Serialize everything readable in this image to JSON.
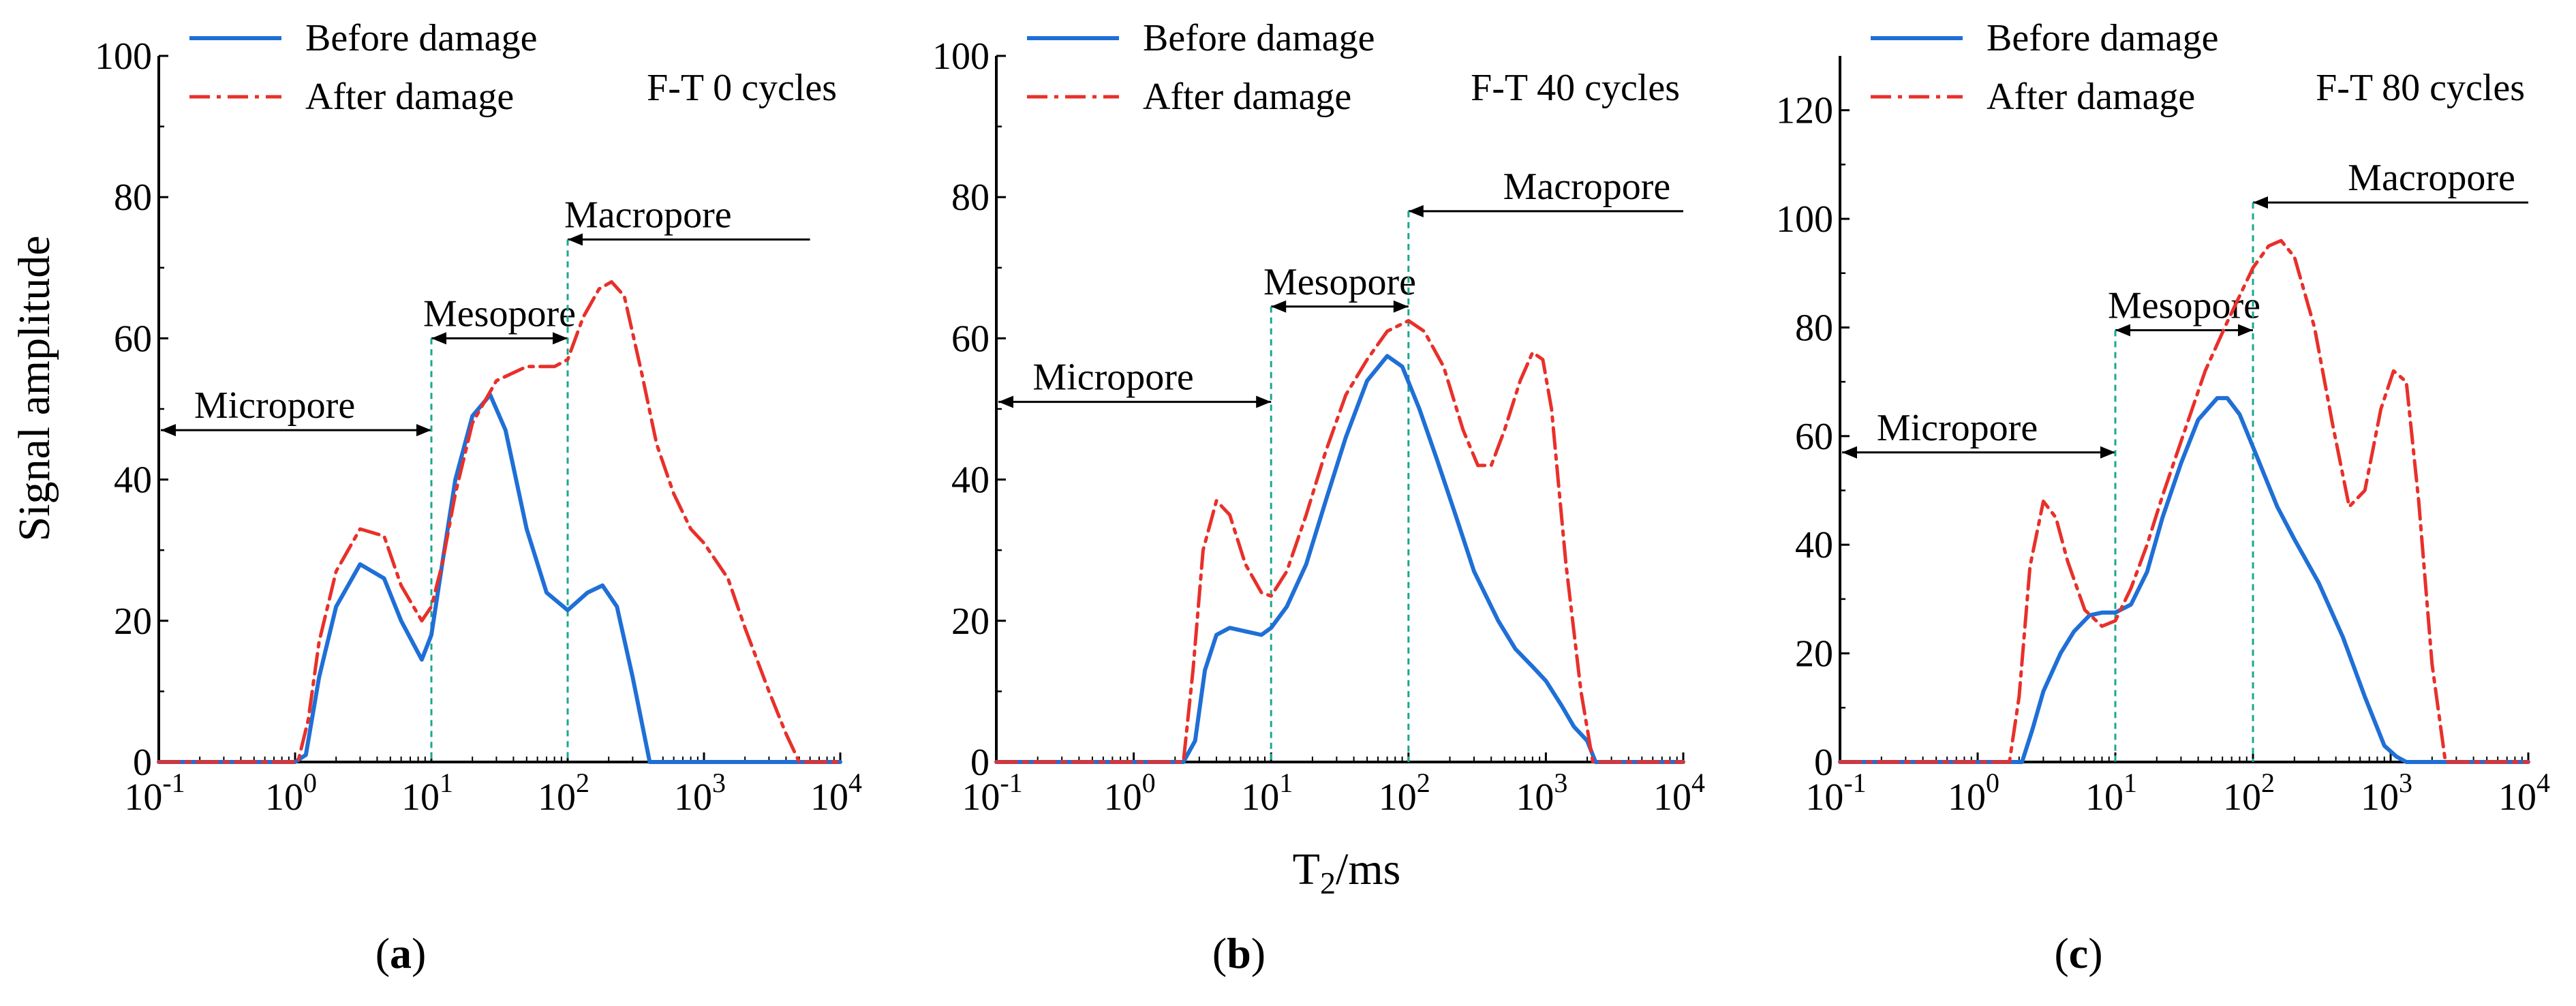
{
  "figure": {
    "ylabel": "Signal amplitude",
    "xlabel_main": "T",
    "xlabel_sub": "2",
    "xlabel_unit": "/ms",
    "legend": {
      "before": "Before damage",
      "after": "After damage"
    },
    "colors": {
      "before": "#1f6fd6",
      "after": "#e8302a",
      "boundary": "#1aa88c",
      "axis": "#000000"
    }
  },
  "chart_data": [
    {
      "type": "line",
      "panel_label": "a",
      "condition": "F-T 0 cycles",
      "xscale": "log",
      "xlim": [
        0.1,
        10000
      ],
      "xtick_exponents": [
        "-1",
        "0",
        "1",
        "2",
        "3",
        "4"
      ],
      "ylim": [
        0,
        100
      ],
      "yticks": [
        0,
        20,
        40,
        60,
        80,
        100
      ],
      "xlabel": "",
      "ylabel": "Signal amplitude",
      "boundaries": [
        10,
        100
      ],
      "pore_regions": [
        {
          "label": "Micropore",
          "x_from": 0.1,
          "x_to": 10,
          "y": 47
        },
        {
          "label": "Mesopore",
          "x_from": 10,
          "x_to": 100,
          "y": 60
        },
        {
          "label": "Macropore",
          "x_from": 100,
          "x_to": 6000,
          "y": 74
        }
      ],
      "series": [
        {
          "name": "Before damage",
          "x": [
            0.1,
            1.0,
            1.2,
            1.5,
            2,
            3,
            4.5,
            6,
            8.5,
            10,
            12,
            15,
            20,
            27,
            35,
            50,
            70,
            100,
            140,
            180,
            230,
            300,
            400,
            10000
          ],
          "y": [
            0,
            0,
            1,
            12,
            22,
            28,
            26,
            20,
            14.5,
            18,
            28,
            40,
            49,
            52,
            47,
            33,
            24,
            21.5,
            24,
            25,
            22,
            12,
            0,
            0
          ]
        },
        {
          "name": "After damage",
          "x": [
            0.1,
            1.05,
            1.25,
            1.5,
            2,
            3,
            4.5,
            6,
            8.5,
            10,
            12,
            15,
            20,
            30,
            50,
            80,
            100,
            130,
            170,
            210,
            260,
            350,
            450,
            600,
            800,
            1000,
            1500,
            2000,
            3000,
            4000,
            5000,
            10000
          ],
          "y": [
            0,
            0,
            6,
            17,
            27,
            33,
            32,
            25,
            20,
            22,
            28,
            38,
            48,
            54,
            56,
            56,
            57,
            63,
            67,
            68,
            66,
            55,
            45,
            38,
            33,
            31,
            26,
            19,
            10,
            4,
            0,
            0
          ]
        }
      ]
    },
    {
      "type": "line",
      "panel_label": "b",
      "condition": "F-T 40 cycles",
      "xscale": "log",
      "xlim": [
        0.1,
        10000
      ],
      "xtick_exponents": [
        "-1",
        "0",
        "1",
        "2",
        "3",
        "4"
      ],
      "ylim": [
        0,
        100
      ],
      "yticks": [
        0,
        20,
        40,
        60,
        80,
        100
      ],
      "xlabel": "T2/ms",
      "ylabel": "",
      "boundaries": [
        10,
        100
      ],
      "pore_regions": [
        {
          "label": "Micropore",
          "x_from": 0.1,
          "x_to": 10,
          "y": 51
        },
        {
          "label": "Mesopore",
          "x_from": 10,
          "x_to": 100,
          "y": 64.5
        },
        {
          "label": "Macropore",
          "x_from": 100,
          "x_to": 10000,
          "y": 78
        }
      ],
      "series": [
        {
          "name": "Before damage",
          "x": [
            0.1,
            2.3,
            2.8,
            3.3,
            4,
            5,
            6.5,
            8.5,
            10,
            13,
            18,
            25,
            35,
            50,
            70,
            90,
            120,
            160,
            220,
            300,
            450,
            600,
            800,
            1000,
            1300,
            1600,
            2000,
            2300,
            10000
          ],
          "y": [
            0,
            0,
            3,
            13,
            18,
            19,
            18.5,
            18,
            19,
            22,
            28,
            37,
            46,
            54,
            57.5,
            56,
            50,
            43,
            35,
            27,
            20,
            16,
            13.5,
            11.5,
            8,
            5,
            3,
            0,
            0
          ]
        },
        {
          "name": "After damage",
          "x": [
            0.1,
            2.3,
            2.7,
            3.2,
            4,
            5,
            6.5,
            8.5,
            10,
            13,
            18,
            25,
            35,
            50,
            70,
            100,
            130,
            180,
            250,
            320,
            400,
            500,
            650,
            800,
            950,
            1100,
            1400,
            1800,
            2200,
            10000
          ],
          "y": [
            0,
            0,
            13,
            30,
            37,
            35,
            28,
            24,
            23.5,
            27,
            35,
            44,
            52,
            57,
            61,
            62.5,
            61,
            56,
            47,
            42,
            42,
            47,
            54,
            58,
            57,
            50,
            28,
            10,
            0,
            0
          ]
        }
      ]
    },
    {
      "type": "line",
      "panel_label": "c",
      "condition": "F-T 80 cycles",
      "xscale": "log",
      "xlim": [
        0.1,
        10000
      ],
      "xtick_exponents": [
        "-1",
        "0",
        "1",
        "2",
        "3",
        "4"
      ],
      "ylim": [
        0,
        130
      ],
      "yticks": [
        0,
        20,
        40,
        60,
        80,
        100,
        120
      ],
      "xlabel": "",
      "ylabel": "",
      "boundaries": [
        10,
        100
      ],
      "pore_regions": [
        {
          "label": "Micropore",
          "x_from": 0.1,
          "x_to": 10,
          "y": 57
        },
        {
          "label": "Mesopore",
          "x_from": 10,
          "x_to": 100,
          "y": 79.5
        },
        {
          "label": "Macropore",
          "x_from": 100,
          "x_to": 10000,
          "y": 103
        }
      ],
      "series": [
        {
          "name": "Before damage",
          "x": [
            0.1,
            2.1,
            2.5,
            3,
            4,
            5,
            6.5,
            8,
            10,
            13,
            17,
            22,
            30,
            40,
            55,
            65,
            80,
            100,
            150,
            200,
            300,
            450,
            650,
            900,
            1100,
            1300,
            10000
          ],
          "y": [
            0,
            0,
            6,
            13,
            20,
            24,
            27,
            27.5,
            27.5,
            29,
            35,
            45,
            55,
            63,
            67,
            67,
            64,
            58,
            47,
            41,
            33,
            23,
            12,
            3,
            1,
            0,
            0
          ]
        },
        {
          "name": "After damage",
          "x": [
            0.1,
            1.7,
            2.0,
            2.4,
            3,
            3.7,
            4.5,
            6,
            8,
            10,
            13,
            17,
            22,
            30,
            45,
            65,
            100,
            130,
            160,
            200,
            280,
            380,
            500,
            650,
            850,
            1050,
            1300,
            1600,
            2000,
            2500,
            10000
          ],
          "y": [
            0,
            0,
            12,
            36,
            48,
            45,
            37,
            28,
            25,
            26,
            32,
            40,
            49,
            59,
            72,
            81,
            91,
            95,
            96,
            93,
            80,
            62,
            47,
            50,
            65,
            72,
            70,
            48,
            18,
            0,
            0
          ]
        }
      ]
    }
  ]
}
